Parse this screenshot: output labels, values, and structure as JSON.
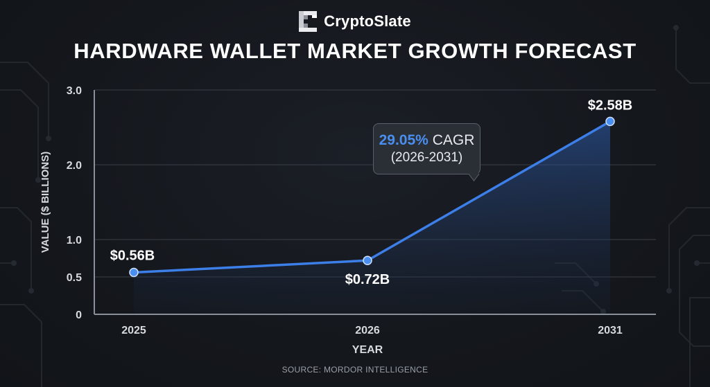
{
  "brand": {
    "name": "CryptoSlate",
    "logo_icon": "cryptoslate-logo-icon"
  },
  "title": "HARDWARE WALLET MARKET GROWTH FORECAST",
  "source": "SOURCE: MORDOR INTELLIGENCE",
  "colors": {
    "background": "#14171c",
    "line": "#3d7fe8",
    "accent": "#4a8ff0",
    "grid": "#3a3f47",
    "text": "#ffffff"
  },
  "callout": {
    "rate": "29.05%",
    "rate_suffix": "CAGR",
    "period": "(2026-2031)"
  },
  "chart_data": {
    "type": "line",
    "categories": [
      "2025",
      "2026",
      "2031"
    ],
    "series": [
      {
        "values": [
          0.56,
          0.72,
          2.58
        ],
        "labels": [
          "$0.56B",
          "$0.72B",
          "$2.58B"
        ]
      }
    ],
    "xlabel": "YEAR",
    "ylabel": "VALUE ($ BILLIONS)",
    "yticks": [
      0,
      0.5,
      1.0,
      2.0,
      3.0
    ],
    "ytick_labels": [
      "0",
      "0.5",
      "1.0",
      "2.0",
      "3.0"
    ],
    "ylim": [
      0,
      3.0
    ],
    "grid": true,
    "area_fill": true
  }
}
